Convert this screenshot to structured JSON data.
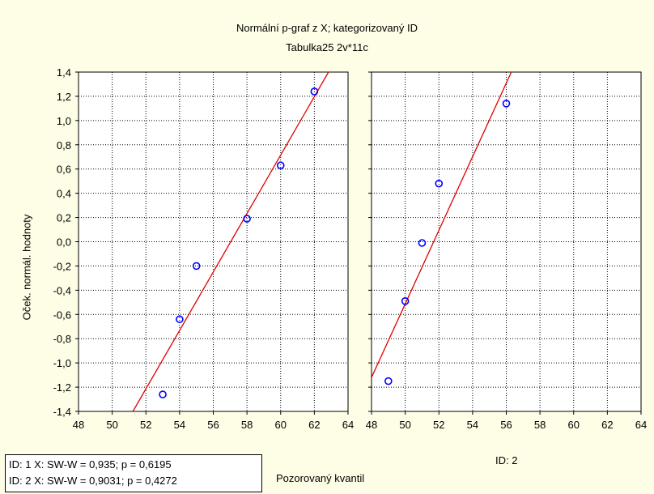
{
  "title": "Normální p-graf z X; kategorizovaný ID",
  "subtitle": "Tabulka25 2v*11c",
  "ylabel": "Oček. normál. hodnoty",
  "xlabel": "Pozorovaný kvantil",
  "panel2_label": "ID: 2",
  "stats": [
    "ID: 1  X:  SW-W = 0,935; p = 0,6195",
    "ID: 2  X:  SW-W = 0,9031; p = 0,4272"
  ],
  "colors": {
    "background": "#FEFDE6",
    "plot_bg": "#FFFFFF",
    "line": "#E00000",
    "marker": "#0000FF"
  },
  "chart_data": [
    {
      "type": "scatter",
      "panel": "ID: 1",
      "title": "Normální p-graf z X; kategorizovaný ID",
      "xlabel": "Pozorovaný kvantil",
      "ylabel": "Oček. normál. hodnoty",
      "xlim": [
        48,
        64
      ],
      "ylim": [
        -1.4,
        1.4
      ],
      "xticks": [
        "48",
        "50",
        "52",
        "54",
        "56",
        "58",
        "60",
        "62",
        "64"
      ],
      "yticks": [
        "-1,4",
        "-1,2",
        "-1,0",
        "-0,8",
        "-0,6",
        "-0,4",
        "-0,2",
        "0,0",
        "0,2",
        "0,4",
        "0,6",
        "0,8",
        "1,0",
        "1,2",
        "1,4"
      ],
      "points": [
        {
          "x": 53,
          "y": -1.26
        },
        {
          "x": 54,
          "y": -0.64
        },
        {
          "x": 55,
          "y": -0.2
        },
        {
          "x": 58,
          "y": 0.19
        },
        {
          "x": 60,
          "y": 0.63
        },
        {
          "x": 62,
          "y": 1.24
        }
      ],
      "fit_line": [
        {
          "x": 51.23,
          "y": -1.4
        },
        {
          "x": 62.84,
          "y": 1.4
        }
      ],
      "grid": true
    },
    {
      "type": "scatter",
      "panel": "ID: 2",
      "xlim": [
        48,
        64
      ],
      "ylim": [
        -1.4,
        1.4
      ],
      "xticks": [
        "48",
        "50",
        "52",
        "54",
        "56",
        "58",
        "60",
        "62",
        "64"
      ],
      "points": [
        {
          "x": 49,
          "y": -1.15
        },
        {
          "x": 50,
          "y": -0.49
        },
        {
          "x": 51,
          "y": -0.01
        },
        {
          "x": 52,
          "y": 0.48
        },
        {
          "x": 56,
          "y": 1.14
        }
      ],
      "fit_line": [
        {
          "x": 48,
          "y": -1.12
        },
        {
          "x": 56.3,
          "y": 1.4
        }
      ],
      "grid": true
    }
  ]
}
